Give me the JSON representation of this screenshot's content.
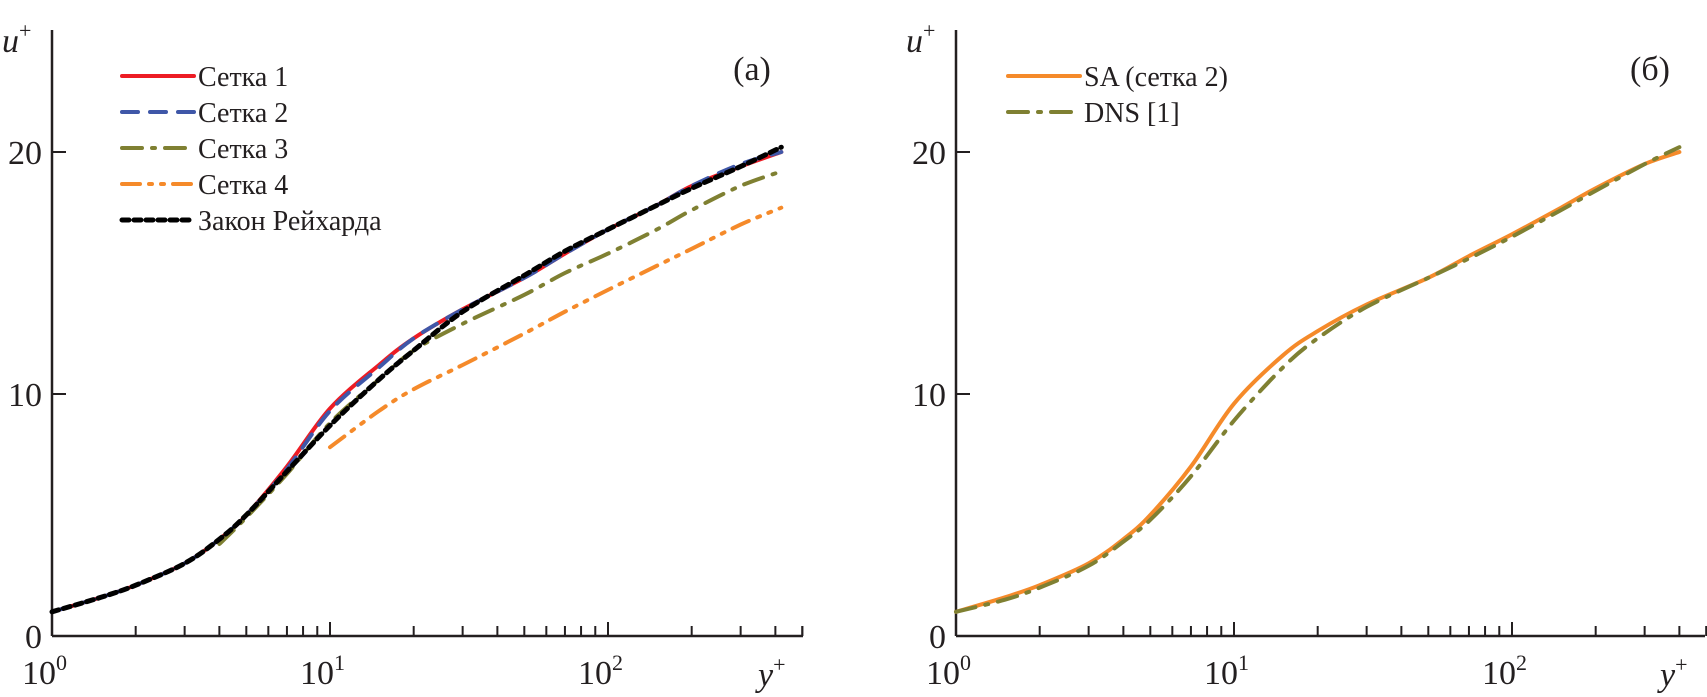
{
  "chart_data": [
    {
      "type": "line",
      "panel_label": "(а)",
      "xlabel": "y+",
      "ylabel": "u+",
      "xscale": "log",
      "xlim": [
        1,
        500
      ],
      "ylim": [
        0,
        25
      ],
      "xticks": [
        {
          "base": "10",
          "exp": "0",
          "value": 1
        },
        {
          "base": "10",
          "exp": "1",
          "value": 10
        },
        {
          "base": "10",
          "exp": "2",
          "value": 100
        }
      ],
      "yticks": [
        {
          "label": "0",
          "value": 0
        },
        {
          "label": "10",
          "value": 10
        },
        {
          "label": "20",
          "value": 20
        }
      ],
      "grid": false,
      "legend_position": "top-left",
      "series": [
        {
          "name": "Сетка 1",
          "color": "#ed1c24",
          "style": "solid",
          "x": [
            1,
            1.5,
            2,
            3,
            4,
            5,
            7,
            10,
            15,
            20,
            30,
            50,
            70,
            100,
            150,
            200,
            300,
            420
          ],
          "y": [
            1.0,
            1.6,
            2.1,
            3.0,
            4.0,
            5.0,
            7.0,
            9.4,
            11.2,
            12.3,
            13.5,
            14.8,
            15.8,
            16.8,
            17.8,
            18.6,
            19.4,
            20.0
          ]
        },
        {
          "name": "Сетка 2",
          "color": "#3f57a8",
          "style": "dashed",
          "x": [
            1,
            1.5,
            2,
            3,
            4,
            5,
            7,
            10,
            15,
            20,
            30,
            50,
            70,
            100,
            150,
            200,
            300,
            420
          ],
          "y": [
            1.0,
            1.6,
            2.1,
            3.0,
            4.0,
            5.0,
            6.9,
            9.3,
            11.1,
            12.3,
            13.5,
            14.8,
            15.8,
            16.8,
            17.8,
            18.6,
            19.5,
            20.0
          ]
        },
        {
          "name": "Сетка 3",
          "color": "#7f8032",
          "style": "dashdot",
          "x": [
            4,
            5,
            7,
            10,
            15,
            20,
            30,
            50,
            70,
            100,
            150,
            200,
            300,
            420
          ],
          "y": [
            3.8,
            4.9,
            6.7,
            8.8,
            10.6,
            11.8,
            12.9,
            14.1,
            15.0,
            15.8,
            16.8,
            17.6,
            18.6,
            19.2
          ]
        },
        {
          "name": "Сетка 4",
          "color": "#f58a2a",
          "style": "dashdotdot",
          "x": [
            10,
            15,
            20,
            30,
            50,
            70,
            100,
            150,
            200,
            300,
            420
          ],
          "y": [
            7.8,
            9.3,
            10.2,
            11.2,
            12.5,
            13.4,
            14.3,
            15.3,
            16.0,
            17.0,
            17.7
          ]
        },
        {
          "name": "Закон Рейхарда",
          "color": "#000000",
          "style": "dotted",
          "x": [
            1,
            1.5,
            2,
            3,
            4,
            5,
            7,
            10,
            15,
            20,
            30,
            50,
            70,
            100,
            150,
            200,
            300,
            420
          ],
          "y": [
            1.0,
            1.6,
            2.1,
            3.0,
            4.0,
            5.0,
            6.8,
            8.7,
            10.6,
            11.8,
            13.4,
            14.9,
            15.9,
            16.8,
            17.8,
            18.5,
            19.4,
            20.2
          ]
        }
      ]
    },
    {
      "type": "line",
      "panel_label": "(б)",
      "xlabel": "y+",
      "ylabel": "u+",
      "xscale": "log",
      "xlim": [
        1,
        500
      ],
      "ylim": [
        0,
        25
      ],
      "xticks": [
        {
          "base": "10",
          "exp": "0",
          "value": 1
        },
        {
          "base": "10",
          "exp": "1",
          "value": 10
        },
        {
          "base": "10",
          "exp": "2",
          "value": 100
        }
      ],
      "yticks": [
        {
          "label": "0",
          "value": 0
        },
        {
          "label": "10",
          "value": 10
        },
        {
          "label": "20",
          "value": 20
        }
      ],
      "grid": false,
      "legend_position": "top-left",
      "series": [
        {
          "name": "SA (сетка 2)",
          "color": "#f58a2a",
          "style": "solid",
          "x": [
            1,
            1.5,
            2,
            3,
            4,
            5,
            7,
            10,
            15,
            20,
            30,
            50,
            70,
            100,
            150,
            200,
            300,
            400
          ],
          "y": [
            1.0,
            1.6,
            2.1,
            3.0,
            4.0,
            5.0,
            7.0,
            9.6,
            11.6,
            12.6,
            13.7,
            14.8,
            15.7,
            16.6,
            17.7,
            18.5,
            19.5,
            20.0
          ]
        },
        {
          "name": "DNS [1]",
          "color": "#7f8032",
          "style": "dashdot",
          "x": [
            1,
            1.5,
            2,
            3,
            4,
            5,
            7,
            10,
            15,
            20,
            30,
            50,
            70,
            100,
            150,
            200,
            300,
            400
          ],
          "y": [
            1.0,
            1.5,
            2.0,
            2.9,
            3.9,
            4.8,
            6.6,
            8.9,
            11.1,
            12.3,
            13.6,
            14.8,
            15.6,
            16.5,
            17.6,
            18.4,
            19.5,
            20.2
          ]
        }
      ]
    }
  ]
}
